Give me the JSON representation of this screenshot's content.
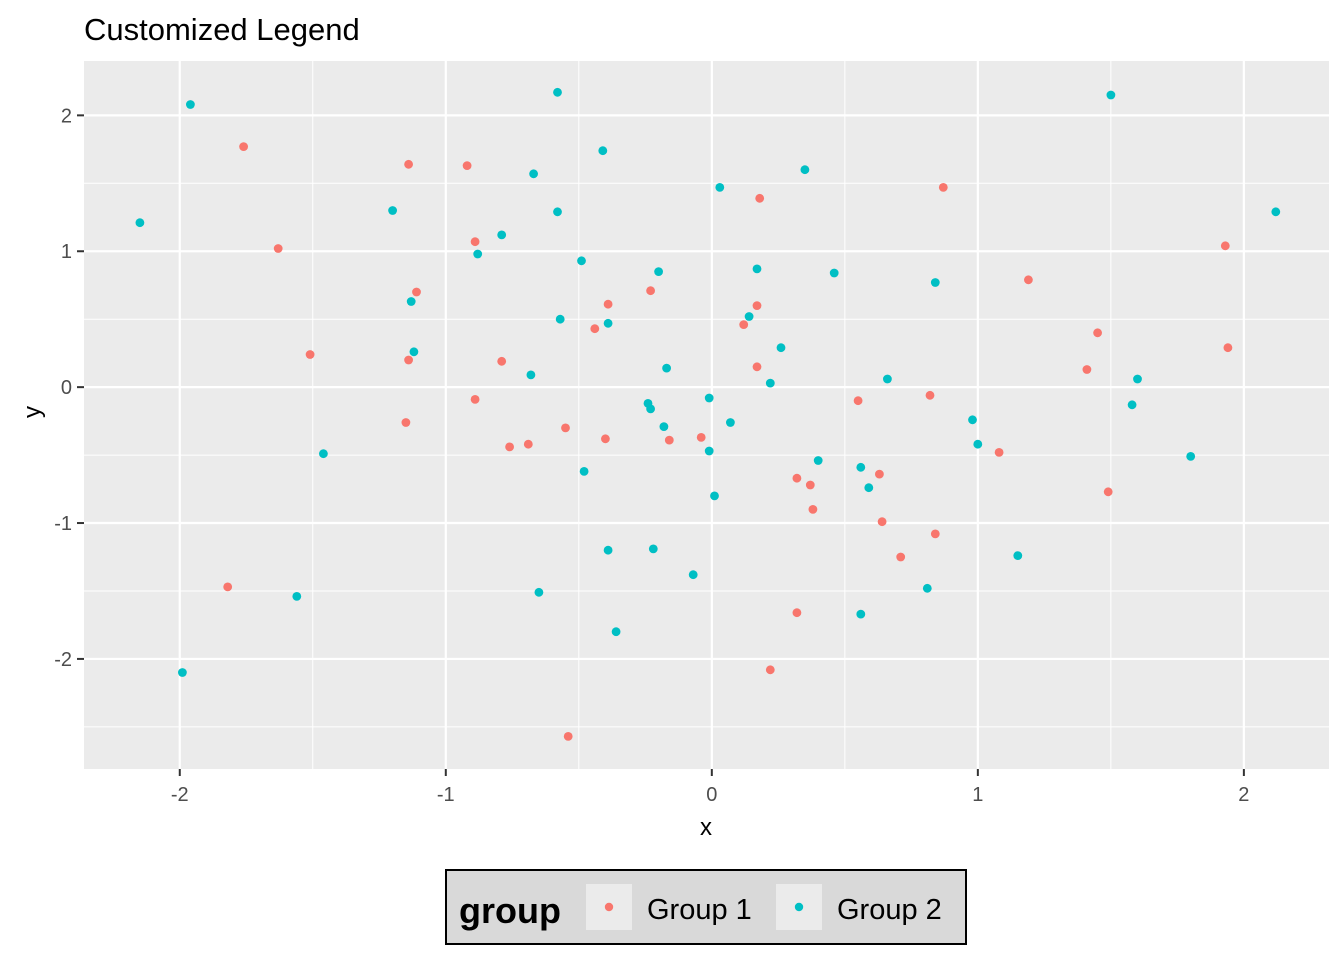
{
  "chart_data": {
    "type": "scatter",
    "title": "Customized Legend",
    "xlabel": "x",
    "ylabel": "y",
    "xlim": [
      -2.36,
      2.32
    ],
    "ylim": [
      -2.81,
      2.4
    ],
    "xticks": [
      -2,
      -1,
      0,
      1,
      2
    ],
    "yticks": [
      -2,
      -1,
      0,
      1,
      2
    ],
    "grid": true,
    "legend": {
      "title": "group",
      "position": "bottom"
    },
    "colors": {
      "panel": "#ebebeb",
      "grid": "#ffffff",
      "Group 1": "#f8766d",
      "Group 2": "#00bfc4"
    },
    "series": [
      {
        "name": "Group 1",
        "points": [
          [
            -1.76,
            1.77
          ],
          [
            -1.63,
            1.02
          ],
          [
            -1.51,
            0.24
          ],
          [
            -1.82,
            -1.47
          ],
          [
            -1.14,
            1.64
          ],
          [
            -1.14,
            0.2
          ],
          [
            -1.15,
            -0.26
          ],
          [
            -1.11,
            0.7
          ],
          [
            -0.92,
            1.63
          ],
          [
            -0.89,
            1.07
          ],
          [
            -0.89,
            -0.09
          ],
          [
            -0.79,
            0.19
          ],
          [
            -0.76,
            -0.44
          ],
          [
            -0.69,
            -0.42
          ],
          [
            -0.55,
            -0.3
          ],
          [
            -0.54,
            -2.57
          ],
          [
            -0.44,
            0.43
          ],
          [
            -0.39,
            0.61
          ],
          [
            -0.4,
            -0.38
          ],
          [
            -0.23,
            0.71
          ],
          [
            -0.16,
            -0.39
          ],
          [
            -0.04,
            -0.37
          ],
          [
            0.12,
            0.46
          ],
          [
            0.17,
            0.6
          ],
          [
            0.17,
            0.15
          ],
          [
            0.18,
            1.39
          ],
          [
            0.22,
            -2.08
          ],
          [
            0.32,
            -0.67
          ],
          [
            0.32,
            -1.66
          ],
          [
            0.37,
            -0.72
          ],
          [
            0.38,
            -0.9
          ],
          [
            0.55,
            -0.1
          ],
          [
            0.63,
            -0.64
          ],
          [
            0.64,
            -0.99
          ],
          [
            0.71,
            -1.25
          ],
          [
            0.82,
            -0.06
          ],
          [
            0.84,
            -1.08
          ],
          [
            0.87,
            1.47
          ],
          [
            1.08,
            -0.48
          ],
          [
            1.19,
            0.79
          ],
          [
            1.41,
            0.13
          ],
          [
            1.45,
            0.4
          ],
          [
            1.49,
            -0.77
          ],
          [
            1.93,
            1.04
          ],
          [
            1.94,
            0.29
          ]
        ]
      },
      {
        "name": "Group 2",
        "points": [
          [
            -2.15,
            1.21
          ],
          [
            -1.96,
            2.08
          ],
          [
            -1.99,
            -2.1
          ],
          [
            -1.56,
            -1.54
          ],
          [
            -1.46,
            -0.49
          ],
          [
            -1.2,
            1.3
          ],
          [
            -1.13,
            0.63
          ],
          [
            -1.12,
            0.26
          ],
          [
            -0.88,
            0.98
          ],
          [
            -0.79,
            1.12
          ],
          [
            -0.68,
            0.09
          ],
          [
            -0.67,
            1.57
          ],
          [
            -0.65,
            -1.51
          ],
          [
            -0.58,
            2.17
          ],
          [
            -0.58,
            1.29
          ],
          [
            -0.57,
            0.5
          ],
          [
            -0.49,
            0.93
          ],
          [
            -0.48,
            -0.62
          ],
          [
            -0.41,
            1.74
          ],
          [
            -0.39,
            0.47
          ],
          [
            -0.39,
            -1.2
          ],
          [
            -0.36,
            -1.8
          ],
          [
            -0.24,
            -0.12
          ],
          [
            -0.23,
            -0.16
          ],
          [
            -0.22,
            -1.19
          ],
          [
            -0.2,
            0.85
          ],
          [
            -0.18,
            -0.29
          ],
          [
            -0.17,
            0.14
          ],
          [
            -0.07,
            -1.38
          ],
          [
            -0.01,
            -0.08
          ],
          [
            -0.01,
            -0.47
          ],
          [
            0.01,
            -0.8
          ],
          [
            0.03,
            1.47
          ],
          [
            0.07,
            -0.26
          ],
          [
            0.14,
            0.52
          ],
          [
            0.17,
            0.87
          ],
          [
            0.22,
            0.03
          ],
          [
            0.26,
            0.29
          ],
          [
            0.35,
            1.6
          ],
          [
            0.4,
            -0.54
          ],
          [
            0.46,
            0.84
          ],
          [
            0.56,
            -0.59
          ],
          [
            0.56,
            -1.67
          ],
          [
            0.59,
            -0.74
          ],
          [
            0.66,
            0.06
          ],
          [
            0.81,
            -1.48
          ],
          [
            0.84,
            0.77
          ],
          [
            0.98,
            -0.24
          ],
          [
            1.0,
            -0.42
          ],
          [
            1.15,
            -1.24
          ],
          [
            1.5,
            2.15
          ],
          [
            1.58,
            -0.13
          ],
          [
            1.6,
            0.06
          ],
          [
            1.8,
            -0.51
          ],
          [
            2.12,
            1.29
          ]
        ]
      }
    ]
  }
}
